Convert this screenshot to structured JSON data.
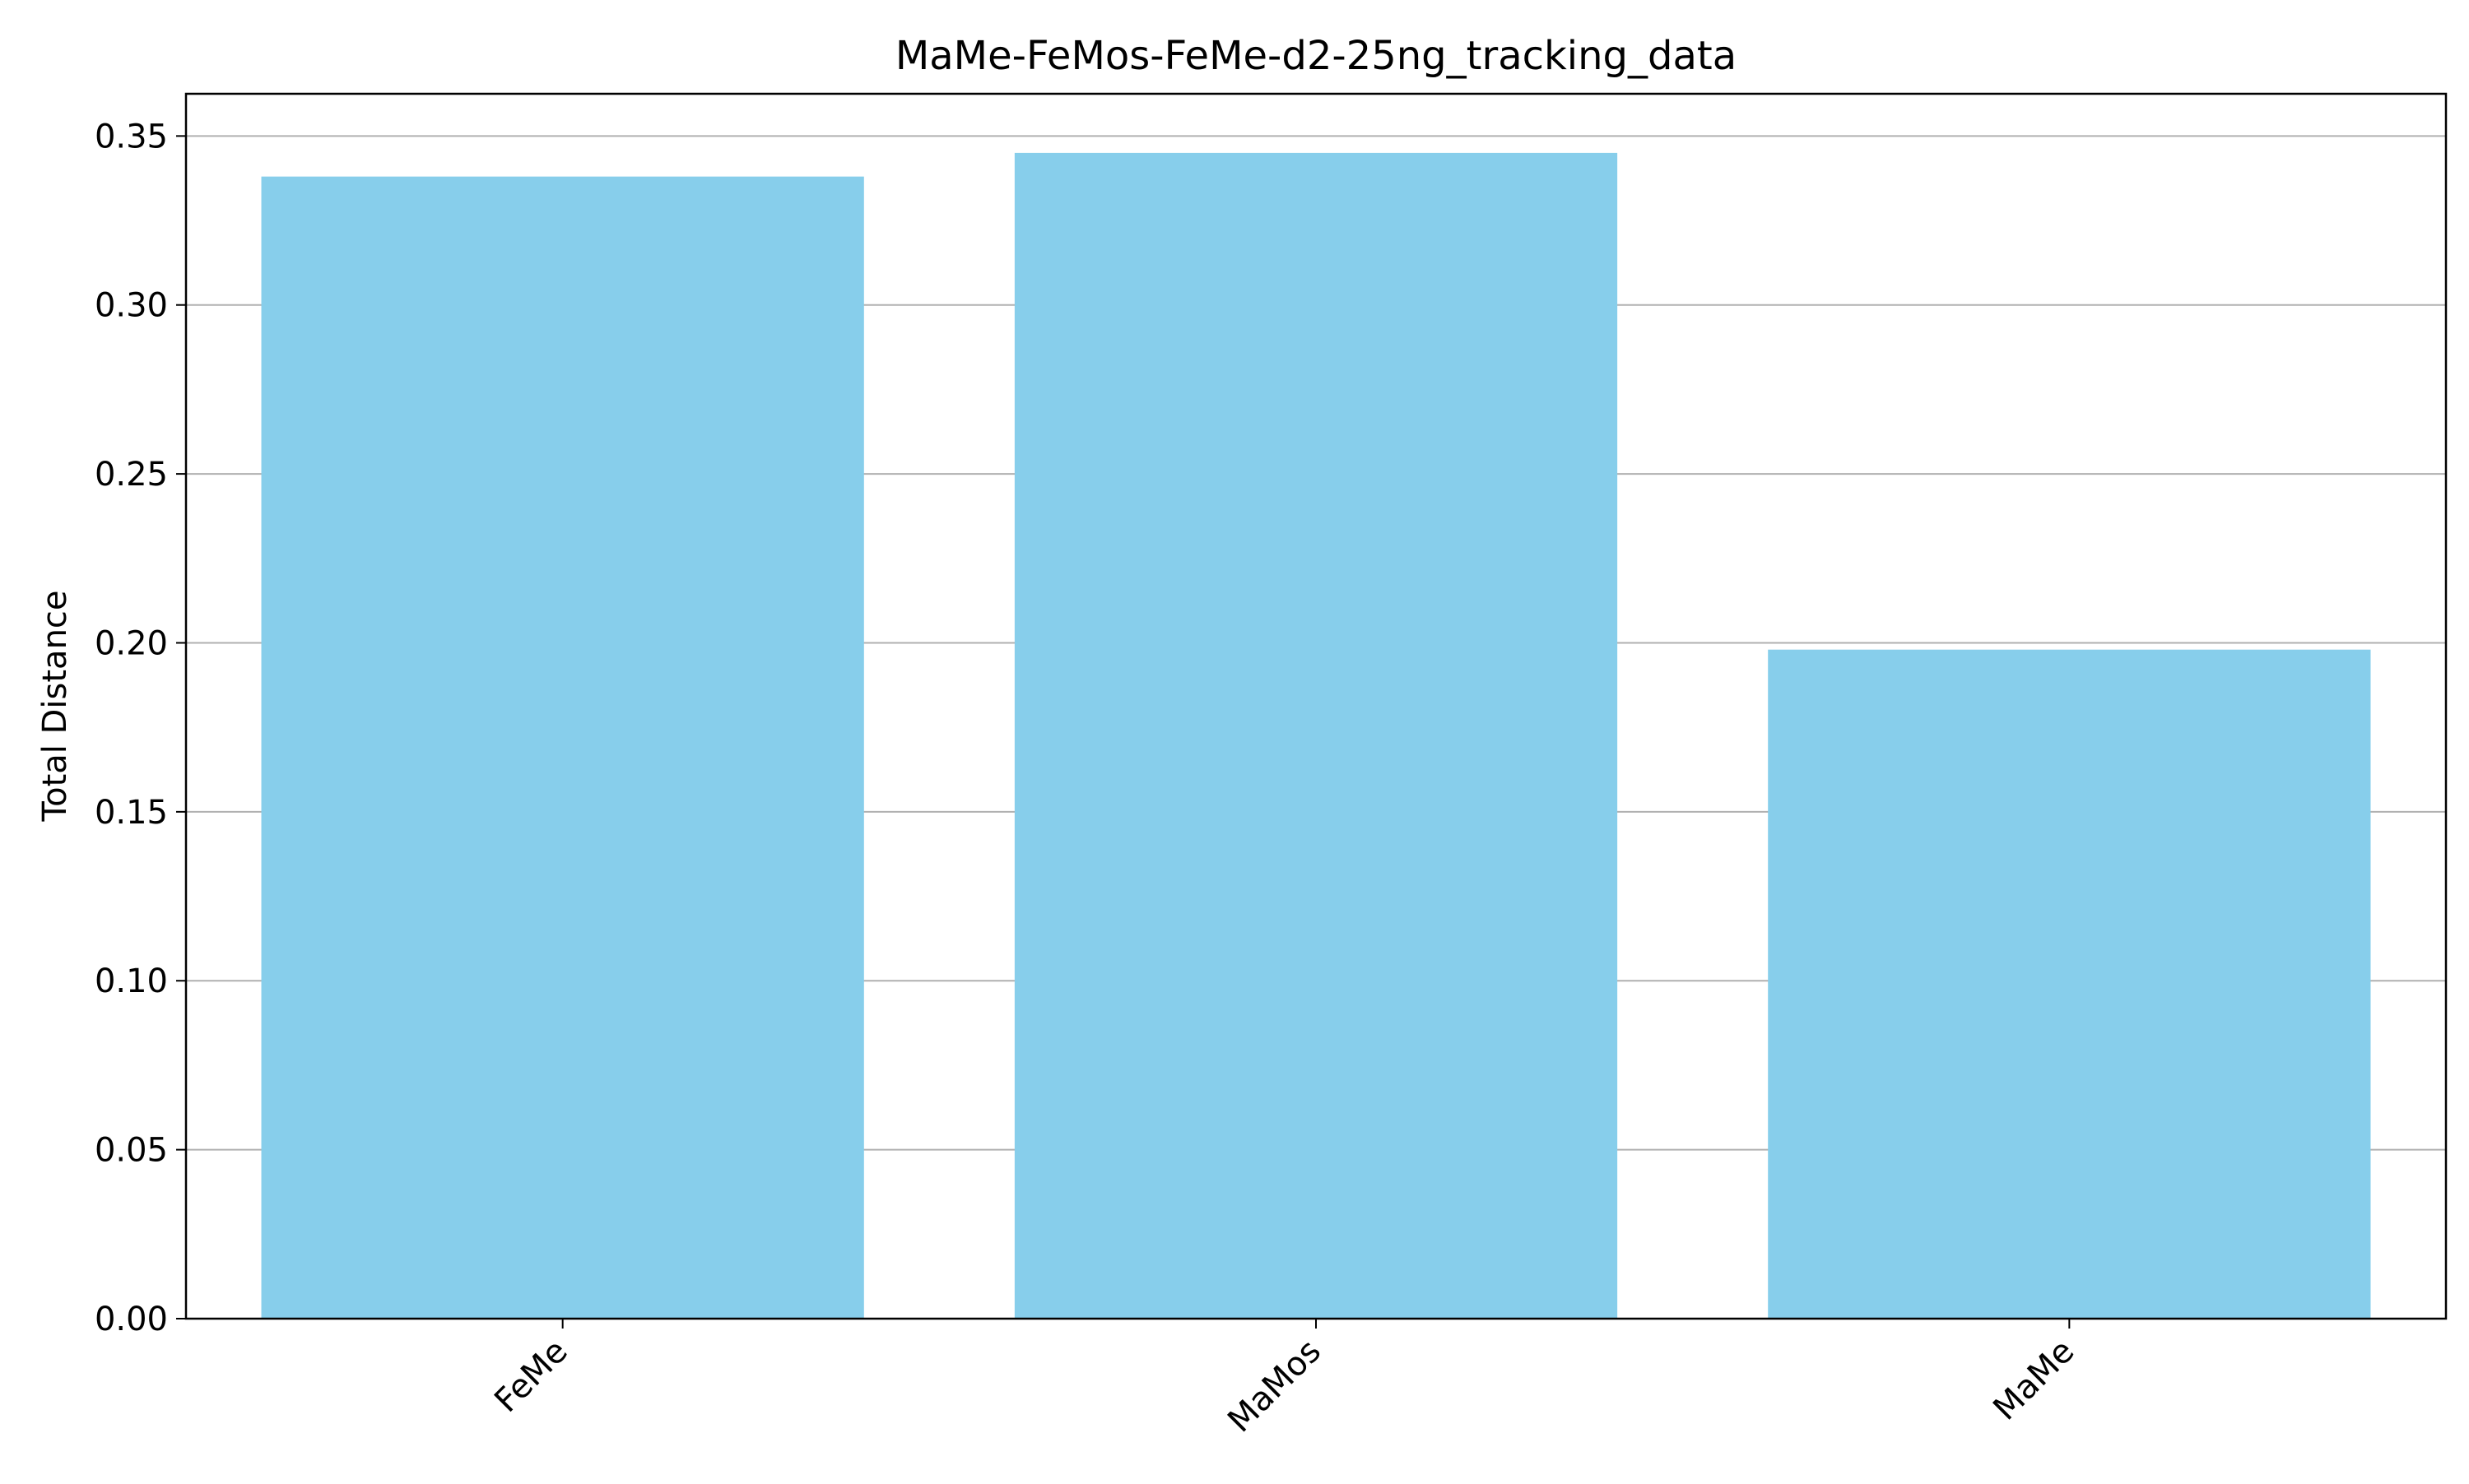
{
  "chart_data": {
    "type": "bar",
    "title": "MaMe-FeMos-FeMe-d2-25ng_tracking_data",
    "xlabel": "",
    "ylabel": "Total Distance",
    "categories": [
      "FeMe",
      "MaMos",
      "MaMe"
    ],
    "values": [
      0.338,
      0.345,
      0.198
    ],
    "ylim": [
      0,
      0.3625
    ],
    "yticks": [
      0.0,
      0.05,
      0.1,
      0.15,
      0.2,
      0.25,
      0.3,
      0.35
    ],
    "ytick_labels": [
      "0.00",
      "0.05",
      "0.10",
      "0.15",
      "0.20",
      "0.25",
      "0.30",
      "0.35"
    ],
    "grid": "y",
    "legend": "none",
    "bar_color": "#87CEEB",
    "grid_color": "#b0b0b0",
    "axis_color": "#000000"
  }
}
